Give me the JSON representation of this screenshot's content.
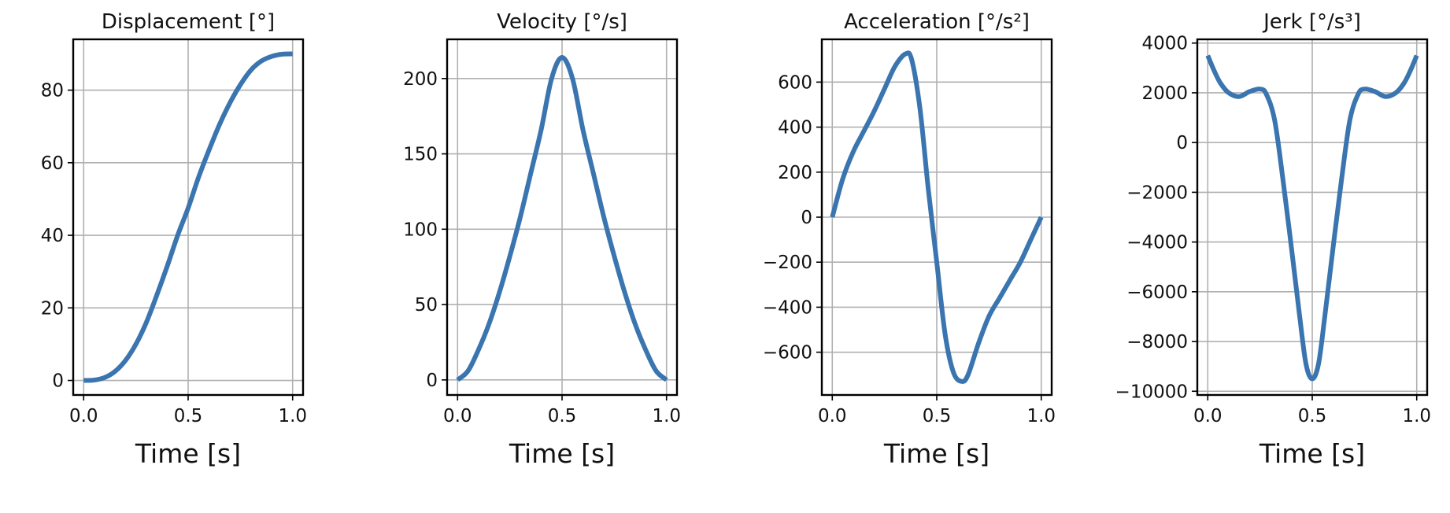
{
  "colors": {
    "line": "#3a75b0",
    "grid": "#b0b0b0"
  },
  "chart_data": [
    {
      "type": "line",
      "title": "Displacement [°]",
      "xlabel": "Time [s]",
      "ylabel": "",
      "xlim": [
        -0.05,
        1.05
      ],
      "ylim": [
        -4,
        94
      ],
      "xticks": [
        0.0,
        0.5,
        1.0
      ],
      "xtick_labels": [
        "0.0",
        "0.5",
        "1.0"
      ],
      "yticks": [
        0,
        20,
        40,
        60,
        80
      ],
      "ytick_labels": [
        "0",
        "20",
        "40",
        "60",
        "80"
      ],
      "grid": true,
      "series": [
        {
          "x": [
            0,
            0.05,
            0.1,
            0.15,
            0.2,
            0.25,
            0.3,
            0.35,
            0.4,
            0.45,
            0.5,
            0.55,
            0.6,
            0.65,
            0.7,
            0.75,
            0.8,
            0.85,
            0.9,
            0.95,
            1.0
          ],
          "y": [
            0,
            0.1,
            0.8,
            2.5,
            5.5,
            10,
            16,
            23.5,
            31.5,
            40,
            47.5,
            56,
            63.5,
            70.5,
            76.5,
            81.5,
            85.5,
            88,
            89.3,
            89.9,
            90
          ]
        }
      ]
    },
    {
      "type": "line",
      "title": "Velocity [°/s]",
      "xlabel": "Time [s]",
      "ylabel": "",
      "xlim": [
        -0.05,
        1.05
      ],
      "ylim": [
        -10,
        226
      ],
      "xticks": [
        0.0,
        0.5,
        1.0
      ],
      "xtick_labels": [
        "0.0",
        "0.5",
        "1.0"
      ],
      "yticks": [
        0,
        50,
        100,
        150,
        200
      ],
      "ytick_labels": [
        "0",
        "50",
        "100",
        "150",
        "200"
      ],
      "grid": true,
      "series": [
        {
          "x": [
            0,
            0.05,
            0.1,
            0.15,
            0.2,
            0.25,
            0.3,
            0.35,
            0.4,
            0.45,
            0.5,
            0.55,
            0.6,
            0.65,
            0.7,
            0.75,
            0.8,
            0.85,
            0.9,
            0.95,
            1.0
          ],
          "y": [
            0,
            6,
            20,
            37,
            58,
            82,
            108,
            137,
            166,
            200,
            214,
            200,
            166,
            137,
            108,
            82,
            58,
            37,
            20,
            6,
            0
          ]
        }
      ]
    },
    {
      "type": "line",
      "title": "Acceleration [°/s²]",
      "xlabel": "Time [s]",
      "ylabel": "",
      "xlim": [
        -0.05,
        1.05
      ],
      "ylim": [
        -790,
        790
      ],
      "xticks": [
        0.0,
        0.5,
        1.0
      ],
      "xtick_labels": [
        "0.0",
        "0.5",
        "1.0"
      ],
      "yticks": [
        -600,
        -400,
        -200,
        0,
        200,
        400,
        600
      ],
      "ytick_labels": [
        "−600",
        "−400",
        "−200",
        "0",
        "200",
        "400",
        "600"
      ],
      "grid": true,
      "series": [
        {
          "x": [
            0,
            0.05,
            0.1,
            0.15,
            0.2,
            0.25,
            0.3,
            0.35,
            0.38,
            0.42,
            0.46,
            0.5,
            0.54,
            0.58,
            0.62,
            0.65,
            0.7,
            0.75,
            0.8,
            0.85,
            0.9,
            0.95,
            1.0
          ],
          "y": [
            0,
            170,
            290,
            380,
            470,
            570,
            670,
            725,
            700,
            480,
            120,
            -200,
            -520,
            -690,
            -730,
            -700,
            -560,
            -440,
            -360,
            -280,
            -200,
            -100,
            0
          ]
        }
      ]
    },
    {
      "type": "line",
      "title": "Jerk [°/s³]",
      "xlabel": "Time [s]",
      "ylabel": "",
      "xlim": [
        -0.05,
        1.05
      ],
      "ylim": [
        -10150,
        4150
      ],
      "xticks": [
        0.0,
        0.5,
        1.0
      ],
      "xtick_labels": [
        "0.0",
        "0.5",
        "1.0"
      ],
      "yticks": [
        -10000,
        -8000,
        -6000,
        -4000,
        -2000,
        0,
        2000,
        4000
      ],
      "ytick_labels": [
        "−10000",
        "−8000",
        "−6000",
        "−4000",
        "−2000",
        "0",
        "2000",
        "4000"
      ],
      "grid": true,
      "series": [
        {
          "x": [
            0,
            0.03,
            0.06,
            0.1,
            0.15,
            0.2,
            0.25,
            0.28,
            0.32,
            0.36,
            0.4,
            0.44,
            0.47,
            0.5,
            0.53,
            0.56,
            0.6,
            0.64,
            0.68,
            0.72,
            0.75,
            0.8,
            0.85,
            0.9,
            0.94,
            0.97,
            1.0
          ],
          "y": [
            3500,
            2900,
            2400,
            2000,
            1850,
            2050,
            2150,
            1950,
            900,
            -1500,
            -4200,
            -7000,
            -8900,
            -9500,
            -8900,
            -7000,
            -4200,
            -1500,
            900,
            1950,
            2150,
            2050,
            1850,
            2000,
            2400,
            2900,
            3500
          ]
        }
      ]
    }
  ]
}
